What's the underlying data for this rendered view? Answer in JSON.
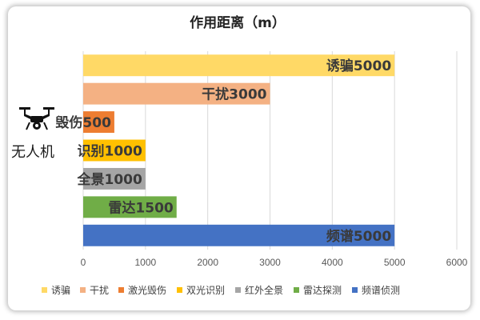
{
  "chart_data": {
    "type": "bar",
    "orientation": "horizontal",
    "title": "作用距离（m）",
    "categories": [
      "诱骗",
      "干扰",
      "激光毁伤",
      "双光识别",
      "红外全景",
      "雷达探测",
      "频谱侦测"
    ],
    "values": [
      5000,
      3000,
      500,
      1000,
      1000,
      1500,
      5000
    ],
    "data_labels": [
      "诱骗5000",
      "干扰3000",
      "毁伤500",
      "识别1000",
      "全景1000",
      "雷达1500",
      "频谱5000"
    ],
    "colors": [
      "#FFD966",
      "#F4B183",
      "#ED7D31",
      "#FFC000",
      "#A5A5A5",
      "#70AD47",
      "#4472C4"
    ],
    "xlim": [
      0,
      6000
    ],
    "xticks": [
      0,
      1000,
      2000,
      3000,
      4000,
      5000,
      6000
    ],
    "grid": true,
    "legend_position": "bottom"
  },
  "sidebar": {
    "icon": "drone-icon",
    "label": "无人机"
  }
}
